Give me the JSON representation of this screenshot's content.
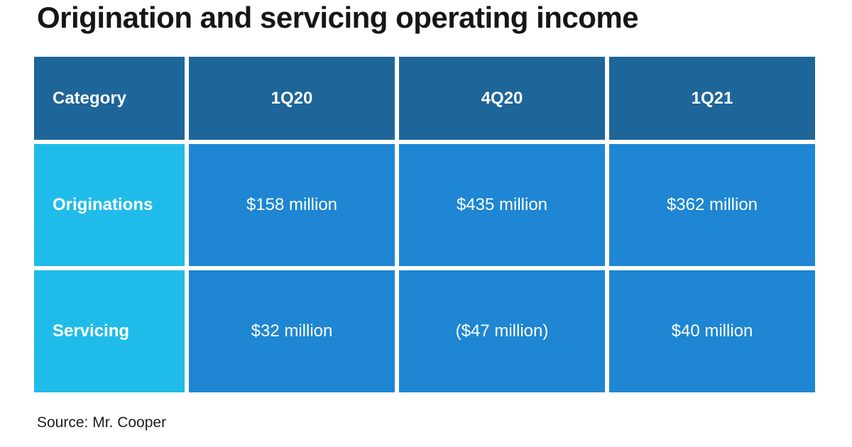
{
  "title": "Origination and servicing operating income",
  "colors": {
    "page_bg": "#ffffff",
    "title_text": "#161616",
    "header_bg": "#1e6599",
    "row_label_bg": "#20bce9",
    "cell_bg": "#1e86d2",
    "cell_text": "#ffffff",
    "source_text": "#1d1d1d"
  },
  "chart_data": {
    "type": "table",
    "title": "Origination and servicing operating income",
    "columns": [
      "Category",
      "1Q20",
      "4Q20",
      "1Q21"
    ],
    "rows": [
      {
        "label": "Originations",
        "values": [
          "$158 million",
          "$435 million",
          "$362 million"
        ]
      },
      {
        "label": "Servicing",
        "values": [
          "$32 million",
          "($47 million)",
          "$40 million"
        ]
      }
    ],
    "source": "Source: Mr. Cooper"
  }
}
